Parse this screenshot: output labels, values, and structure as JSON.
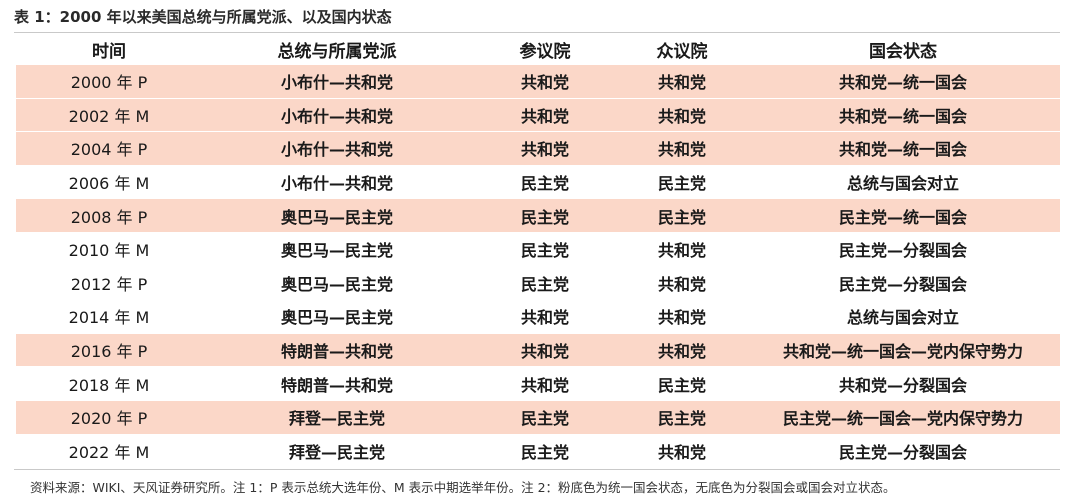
{
  "caption": "表 1：2000 年以来美国总统与所属党派、以及国内状态",
  "headers": [
    "时间",
    "总统与所属党派",
    "参议院",
    "众议院",
    "国会状态"
  ],
  "rows": [
    {
      "year": "2000 年 P",
      "president": "小布什—共和党",
      "senate": "共和党",
      "house": "共和党",
      "status": "共和党—统一国会",
      "pink": true
    },
    {
      "year": "2002 年 M",
      "president": "小布什—共和党",
      "senate": "共和党",
      "house": "共和党",
      "status": "共和党—统一国会",
      "pink": true
    },
    {
      "year": "2004 年 P",
      "president": "小布什—共和党",
      "senate": "共和党",
      "house": "共和党",
      "status": "共和党—统一国会",
      "pink": true
    },
    {
      "year": "2006 年 M",
      "president": "小布什—共和党",
      "senate": "民主党",
      "house": "民主党",
      "status": "总统与国会对立",
      "pink": false
    },
    {
      "year": "2008 年 P",
      "president": "奥巴马—民主党",
      "senate": "民主党",
      "house": "民主党",
      "status": "民主党—统一国会",
      "pink": true
    },
    {
      "year": "2010 年 M",
      "president": "奥巴马—民主党",
      "senate": "民主党",
      "house": "共和党",
      "status": "民主党—分裂国会",
      "pink": false
    },
    {
      "year": "2012 年 P",
      "president": "奥巴马—民主党",
      "senate": "民主党",
      "house": "共和党",
      "status": "民主党—分裂国会",
      "pink": false
    },
    {
      "year": "2014 年 M",
      "president": "奥巴马—民主党",
      "senate": "共和党",
      "house": "共和党",
      "status": "总统与国会对立",
      "pink": false
    },
    {
      "year": "2016 年 P",
      "president": "特朗普—共和党",
      "senate": "共和党",
      "house": "共和党",
      "status": "共和党—统一国会—党内保守势力",
      "pink": true
    },
    {
      "year": "2018 年 M",
      "president": "特朗普—共和党",
      "senate": "共和党",
      "house": "民主党",
      "status": "共和党—分裂国会",
      "pink": false
    },
    {
      "year": "2020 年 P",
      "president": "拜登—民主党",
      "senate": "民主党",
      "house": "民主党",
      "status": "民主党—统一国会—党内保守势力",
      "pink": true
    },
    {
      "year": "2022 年 M",
      "president": "拜登—民主党",
      "senate": "民主党",
      "house": "共和党",
      "status": "民主党—分裂国会",
      "pink": false
    }
  ],
  "note": "资料来源：WIKI、天风证券研究所。注 1：P 表示总统大选年份、M 表示中期选举年份。注 2：粉底色为统一国会状态，无底色为分裂国会或国会对立状态。",
  "colors": {
    "pink_row": "#fbd7c8"
  }
}
